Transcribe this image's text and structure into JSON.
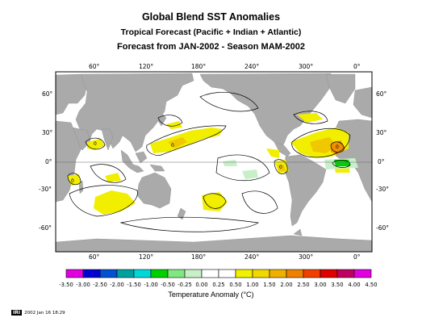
{
  "title": "Global Blend SST Anomalies",
  "subtitle": "Tropical Forecast (Pacific + Indian + Atlantic)",
  "forecast": "Forecast from JAN-2002 - Season MAM-2002",
  "lon_labels": [
    "60°",
    "120°",
    "180°",
    "240°",
    "300°",
    "0°"
  ],
  "lat_labels_left": [
    "60°",
    "30°",
    "0°",
    "-30°",
    "-60°"
  ],
  "lat_labels_right": [
    "60°",
    "30°",
    "0°",
    "-30°",
    "-60°"
  ],
  "colorbar": {
    "title": "Temperature Anomaly (°C)",
    "labels": [
      "-3.50",
      "-3.00",
      "-2.50",
      "-2.00",
      "-1.50",
      "-1.00",
      "-0.50",
      "-0.25",
      "0.00",
      "0.25",
      "0.50",
      "1.00",
      "1.50",
      "2.00",
      "2.50",
      "3.00",
      "3.50",
      "4.00",
      "4.50"
    ],
    "colors": [
      "#e000e0",
      "#0000d0",
      "#0050d0",
      "#00a0a0",
      "#00d8d8",
      "#00d000",
      "#80e880",
      "#c8f0c8",
      "#ffffff",
      "#ffffff",
      "#f0f000",
      "#f0d800",
      "#f0b000",
      "#f08000",
      "#f04000",
      "#e00000",
      "#c00060",
      "#e000e0"
    ]
  },
  "contour_labels": [
    "0",
    "0",
    "0",
    "0",
    "0"
  ],
  "colors": {
    "land": "#aaaaaa",
    "ocean": "#ffffff",
    "warm": "#f2ee00",
    "warm2": "#f0c800",
    "hot": "#f09000",
    "cool": "#c8f0c8",
    "green": "#00d000",
    "coast": "#888888"
  },
  "footer": {
    "logo": "IRI",
    "text": "2002 Jan 16 18:29"
  }
}
